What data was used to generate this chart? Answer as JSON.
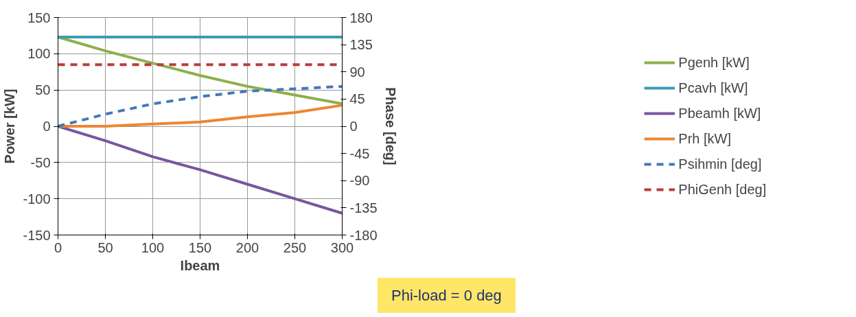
{
  "chart_data": {
    "type": "line",
    "xlabel": "Ibeam",
    "ylabel": "Power [kW]",
    "y2label": "Phase [deg]",
    "x": [
      0,
      50,
      100,
      150,
      200,
      250,
      300
    ],
    "xlim": [
      0,
      300
    ],
    "xticks": [
      0,
      50,
      100,
      150,
      200,
      250,
      300
    ],
    "ylim": [
      -150,
      150
    ],
    "yticks": [
      -150,
      -100,
      -50,
      0,
      50,
      100,
      150
    ],
    "y2lim": [
      -180,
      180
    ],
    "y2ticks": [
      -180,
      -135,
      -90,
      -45,
      0,
      45,
      90,
      135,
      180
    ],
    "grid": true,
    "legend": "right",
    "marker": "none",
    "series": [
      {
        "name": "Pgenh [kW]",
        "color": "#8db04a",
        "values": [
          123,
          104,
          87,
          70,
          55,
          43,
          31
        ]
      },
      {
        "name": "Pcavh [kW]",
        "color": "#3d9bb5",
        "values": [
          123,
          123,
          123,
          123,
          123,
          123,
          123
        ]
      },
      {
        "name": "Pbeamh [kW]",
        "color": "#7b559f",
        "values": [
          0,
          -20,
          -42,
          -60,
          -80,
          -100,
          -120
        ]
      },
      {
        "name": "Prh [kW]",
        "color": "#ed8633",
        "values": [
          0,
          0,
          3,
          6,
          13,
          19,
          29
        ]
      },
      {
        "name": "Psihmin [deg]",
        "color": "#4478b8",
        "axis": "y2",
        "line_style": "dashed",
        "values": [
          0,
          20,
          37,
          49,
          58,
          62,
          66
        ]
      },
      {
        "name": "PhiGenh [deg]",
        "color": "#b83d3a",
        "axis": "y2",
        "line_style": "dashed",
        "values": [
          102,
          102,
          102,
          102,
          102,
          102,
          102
        ]
      }
    ],
    "annotations": [
      "Phi-load = 0 deg"
    ]
  }
}
